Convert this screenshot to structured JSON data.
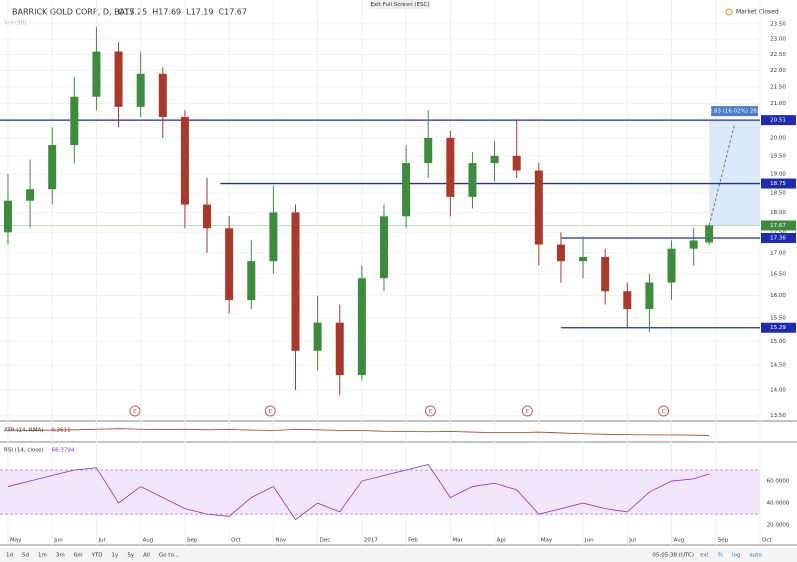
{
  "header": {
    "symbol": "BARRICK GOLD CORP, D, BATS",
    "ohlc": [
      "O17.25",
      "H17.69",
      "L17.19",
      "C17.67"
    ],
    "volume": "Vol (20)",
    "fullscreen": "Exit Full Screen (ESC)",
    "status": "Market Closed"
  },
  "toolbar": {
    "ranges": [
      "1d",
      "5d",
      "1m",
      "3m",
      "6m",
      "YTD",
      "1y",
      "5y",
      "All",
      "Go to..."
    ],
    "time": "05:05:38 (UTC)",
    "options": [
      "ext",
      "%",
      "log",
      "auto"
    ]
  },
  "chart_data": [
    {
      "type": "candlestick",
      "log_scale": true,
      "up_color": "#3d8b3d",
      "down_color": "#a8392b",
      "x": [
        0,
        0.5,
        1,
        1.5,
        2,
        2.5,
        3,
        3.5,
        4,
        4.5,
        5,
        5.5,
        6,
        6.5,
        7,
        7.5,
        8,
        8.5,
        9,
        9.5,
        10,
        10.5,
        11,
        11.5,
        12,
        12.5,
        13,
        13.5,
        14,
        14.5,
        15,
        15.5,
        15.85
      ],
      "open": [
        17.5,
        18.3,
        18.6,
        19.8,
        21.2,
        22.6,
        20.9,
        21.9,
        20.6,
        18.2,
        17.6,
        15.9,
        16.8,
        18.0,
        14.8,
        15.4,
        14.3,
        16.4,
        17.9,
        19.3,
        20.0,
        18.4,
        19.3,
        19.5,
        19.1,
        17.2,
        16.8,
        16.9,
        16.1,
        15.7,
        16.3,
        17.1,
        17.25
      ],
      "high": [
        19.0,
        19.4,
        20.3,
        21.8,
        23.4,
        22.9,
        22.6,
        22.1,
        20.8,
        18.9,
        17.9,
        17.3,
        18.7,
        18.2,
        16.0,
        15.8,
        16.7,
        18.2,
        19.8,
        20.8,
        20.2,
        19.6,
        19.9,
        20.5,
        19.3,
        17.5,
        17.4,
        17.1,
        16.3,
        16.5,
        17.3,
        17.6,
        17.69
      ],
      "low": [
        17.2,
        17.6,
        18.2,
        19.3,
        20.8,
        20.3,
        20.6,
        20.0,
        17.6,
        17.0,
        15.6,
        15.7,
        16.5,
        14.0,
        14.4,
        13.9,
        14.2,
        16.1,
        17.6,
        18.9,
        17.9,
        18.1,
        18.8,
        18.9,
        16.7,
        16.3,
        16.4,
        15.8,
        15.3,
        15.2,
        15.9,
        16.7,
        17.19
      ],
      "close": [
        18.3,
        18.6,
        19.8,
        21.2,
        22.6,
        20.9,
        21.9,
        20.6,
        18.2,
        17.6,
        15.9,
        16.8,
        18.0,
        14.8,
        15.4,
        14.3,
        16.4,
        17.9,
        19.3,
        20.0,
        18.4,
        19.3,
        19.5,
        19.1,
        17.2,
        16.8,
        16.9,
        16.1,
        15.7,
        16.3,
        17.1,
        17.3,
        17.67
      ],
      "xlim": [
        -0.18,
        17.0
      ],
      "xticks": [
        {
          "value": 0,
          "label": "May"
        },
        {
          "value": 1,
          "label": "Jun"
        },
        {
          "value": 2,
          "label": "Jul"
        },
        {
          "value": 3,
          "label": "Aug"
        },
        {
          "value": 4,
          "label": "Sep"
        },
        {
          "value": 5,
          "label": "Oct"
        },
        {
          "value": 6,
          "label": "Nov"
        },
        {
          "value": 7,
          "label": "Dec"
        },
        {
          "value": 8,
          "label": "2017"
        },
        {
          "value": 9,
          "label": "Feb"
        },
        {
          "value": 10,
          "label": "Mar"
        },
        {
          "value": 11,
          "label": "Apr"
        },
        {
          "value": 12,
          "label": "May"
        },
        {
          "value": 13,
          "label": "Jun"
        },
        {
          "value": 14,
          "label": "Jul"
        },
        {
          "value": 15,
          "label": "Aug"
        },
        {
          "value": 16,
          "label": "Sep"
        },
        {
          "value": 17,
          "label": "Oct"
        }
      ],
      "ylim": [
        13.4,
        23.9
      ],
      "yticks": [
        {
          "value": 13.5,
          "label": "13.50"
        },
        {
          "value": 14,
          "label": "14.00"
        },
        {
          "value": 14.5,
          "label": "14.50"
        },
        {
          "value": 15,
          "label": "15.00"
        },
        {
          "value": 15.5,
          "label": "15.50"
        },
        {
          "value": 16,
          "label": "16.00"
        },
        {
          "value": 16.5,
          "label": "16.50"
        },
        {
          "value": 17,
          "label": "17.00"
        },
        {
          "value": 17.5,
          "label": "17.50"
        },
        {
          "value": 18,
          "label": "18.00"
        },
        {
          "value": 18.5,
          "label": "18.50"
        },
        {
          "value": 19,
          "label": "19.00"
        },
        {
          "value": 19.5,
          "label": "19.50"
        },
        {
          "value": 20,
          "label": "20.00"
        },
        {
          "value": 20.5,
          "label": "20.50"
        },
        {
          "value": 21,
          "label": "21.00"
        },
        {
          "value": 21.5,
          "label": "21.50"
        },
        {
          "value": 22,
          "label": "22.00"
        },
        {
          "value": 22.5,
          "label": "22.50"
        },
        {
          "value": 23,
          "label": "23.00"
        },
        {
          "value": 23.5,
          "label": "23.50"
        }
      ],
      "grid": true,
      "levels": [
        20.51,
        18.75,
        17.36,
        15.29
      ],
      "level_from": [
        -0.18,
        4.8,
        12.5,
        12.5
      ],
      "level_color": "#1e2bb0",
      "last_price": 17.67,
      "measure": {
        "label": "2.83 (16.02%) 283"
      },
      "earnings": [
        2.87,
        5.93,
        9.55,
        11.74,
        14.82
      ],
      "earnings_label": "E"
    },
    {
      "type": "line",
      "title": "ATR (14, RMA)",
      "color": "#a8392b",
      "ylim": [
        0.2,
        0.8
      ],
      "values": [
        0.55,
        0.54,
        0.55,
        0.56,
        0.58,
        0.6,
        0.58,
        0.57,
        0.58,
        0.56,
        0.57,
        0.55,
        0.54,
        0.57,
        0.56,
        0.54,
        0.53,
        0.51,
        0.5,
        0.49,
        0.5,
        0.48,
        0.46,
        0.46,
        0.48,
        0.45,
        0.42,
        0.4,
        0.39,
        0.38,
        0.38,
        0.37,
        0.3611
      ]
    },
    {
      "type": "line",
      "title": "RSI (14, close)",
      "color": "#8a2be2",
      "ylim": [
        2,
        94.5
      ],
      "yticks": [
        {
          "value": 20,
          "label": "20.0000"
        },
        {
          "value": 40,
          "label": "40.0000"
        },
        {
          "value": 60,
          "label": "60.0000"
        }
      ],
      "bands": [
        30,
        70
      ],
      "values": [
        55,
        60,
        65,
        70,
        72,
        40,
        55,
        45,
        35,
        30,
        28,
        45,
        55,
        25,
        40,
        32,
        60,
        65,
        70,
        75,
        45,
        55,
        58,
        52,
        30,
        35,
        40,
        35,
        32,
        50,
        60,
        62,
        66.3794
      ]
    }
  ]
}
